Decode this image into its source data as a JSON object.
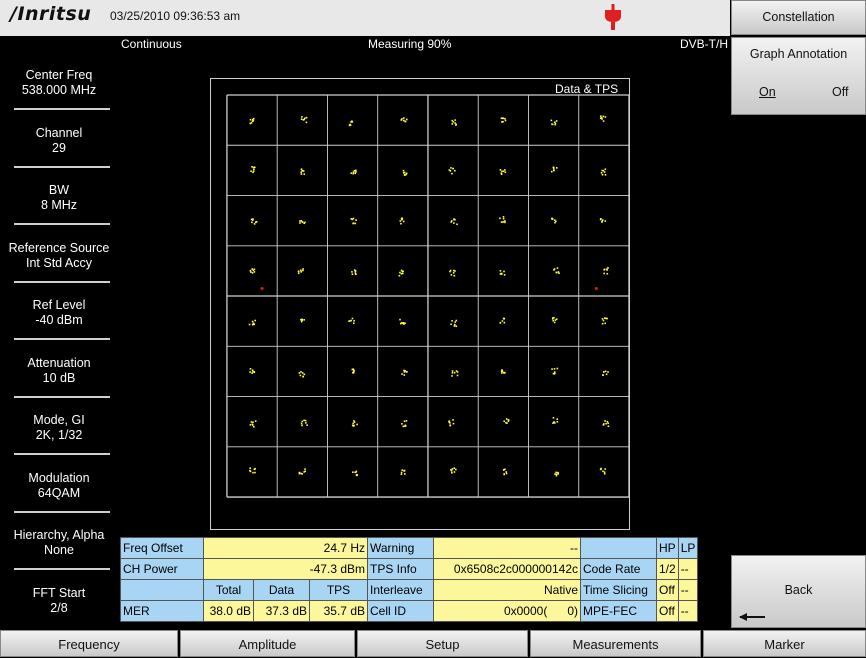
{
  "header": {
    "brand": "/Inritsu",
    "datetime": "03/25/2010 09:36:53 am",
    "mode": "Continuous",
    "measuring": "Measuring  90%",
    "standard": "DVB-T/H"
  },
  "left_panel": [
    {
      "label": "Center Freq",
      "value": "538.000 MHz"
    },
    {
      "label": "Channel",
      "value": "29"
    },
    {
      "label": "BW",
      "value": "8 MHz"
    },
    {
      "label": "Reference Source",
      "value": "Int Std Accy"
    },
    {
      "label": "Ref Level",
      "value": "-40 dBm"
    },
    {
      "label": "Attenuation",
      "value": "10 dB"
    },
    {
      "label": "Mode, GI",
      "value": "2K, 1/32"
    },
    {
      "label": "Modulation",
      "value": "64QAM"
    },
    {
      "label": "Hierarchy, Alpha",
      "value": "None"
    },
    {
      "label": "FFT Start",
      "value": "2/8"
    }
  ],
  "right_panel": {
    "menu_title": "Constellation",
    "graph_annotation": {
      "label": "Graph Annotation",
      "on": "On",
      "off": "Off",
      "selected": "On"
    },
    "back": "Back"
  },
  "graph": {
    "title": "Data & TPS",
    "grid": "8x8 constellation",
    "marker_color": "#ffff33"
  },
  "table": {
    "freq_offset": {
      "label": "Freq Offset",
      "value": "24.7 Hz"
    },
    "warning": {
      "label": "Warning",
      "value": "--"
    },
    "hp_header": "HP",
    "lp_header": "LP",
    "ch_power": {
      "label": "CH Power",
      "value": "-47.3 dBm"
    },
    "tps_info": {
      "label": "TPS Info",
      "value": "0x6508c2c000000142c"
    },
    "code_rate": {
      "label": "Code Rate",
      "hp": "1/2",
      "lp": "--"
    },
    "col_total": "Total",
    "col_data": "Data",
    "col_tps": "TPS",
    "interleave": {
      "label": "Interleave",
      "value": "Native"
    },
    "time_slicing": {
      "label": "Time Slicing",
      "hp": "Off",
      "lp": "--"
    },
    "mer": {
      "label": "MER",
      "total": "38.0 dB",
      "data": "37.3 dB",
      "tps": "35.7 dB"
    },
    "cell_id": {
      "label": "Cell ID",
      "value": "0x0000(      0)"
    },
    "mpe_fec": {
      "label": "MPE-FEC",
      "hp": "Off",
      "lp": "--"
    }
  },
  "bottom_bar": [
    "Frequency",
    "Amplitude",
    "Setup",
    "Measurements",
    "Marker"
  ]
}
